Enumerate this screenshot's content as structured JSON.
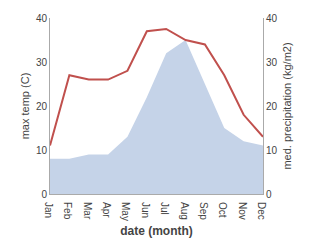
{
  "chart_data": {
    "type": "line",
    "categories": [
      "Jan",
      "Feb",
      "Mar",
      "Apr",
      "May",
      "Jun",
      "Jul",
      "Aug",
      "Sep",
      "Oct",
      "Nov",
      "Dec"
    ],
    "series": [
      {
        "type": "area",
        "axis": "y2",
        "color": "#c5d3e8",
        "values": [
          8,
          8,
          9,
          9,
          13,
          22,
          32,
          35,
          25,
          15,
          12,
          11
        ]
      },
      {
        "type": "line",
        "color": "#c0504d",
        "values": [
          11,
          27,
          26,
          26,
          28,
          37,
          37.5,
          35,
          34,
          27,
          18,
          13
        ]
      }
    ],
    "xlabel": "date (month)",
    "ylabel": "max temp (C)",
    "y2label": "med. precipitation (kg/m2)",
    "ylim": [
      0,
      40
    ],
    "yticks": [
      0,
      10,
      20,
      30,
      40
    ],
    "y2lim": [
      0,
      40
    ],
    "y2ticks": [
      0,
      10,
      20,
      30,
      40
    ],
    "grid": false
  }
}
